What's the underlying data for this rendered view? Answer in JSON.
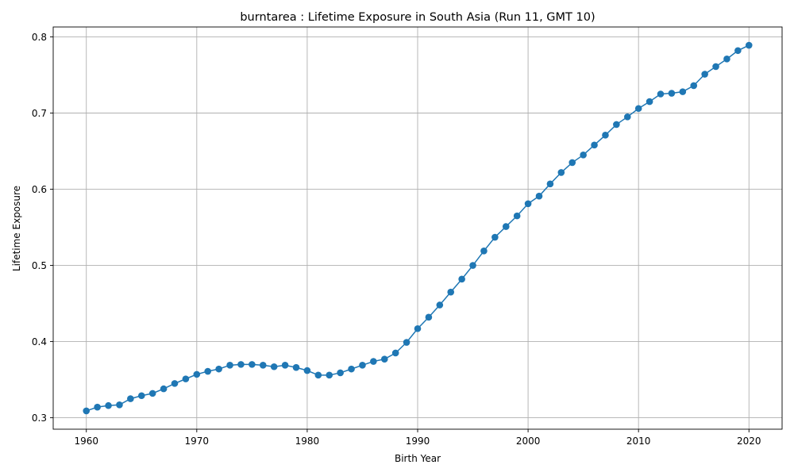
{
  "chart_data": {
    "type": "line",
    "title": "burntarea : Lifetime Exposure in South Asia (Run 11, GMT 10)",
    "xlabel": "Birth Year",
    "ylabel": "Lifetime Exposure",
    "xlim": [
      1957,
      2023
    ],
    "ylim": [
      0.285,
      0.813
    ],
    "xticks": [
      1960,
      1970,
      1980,
      1990,
      2000,
      2010,
      2020
    ],
    "yticks": [
      0.3,
      0.4,
      0.5,
      0.6,
      0.7,
      0.8
    ],
    "ytick_labels": [
      "0.3",
      "0.4",
      "0.5",
      "0.6",
      "0.7",
      "0.8"
    ],
    "grid": true,
    "legend": "none",
    "color": "#1f77b4",
    "marker": "circle",
    "series": [
      {
        "x": [
          1960,
          1961,
          1962,
          1963,
          1964,
          1965,
          1966,
          1967,
          1968,
          1969,
          1970,
          1971,
          1972,
          1973,
          1974,
          1975,
          1976,
          1977,
          1978,
          1979,
          1980,
          1981,
          1982,
          1983,
          1984,
          1985,
          1986,
          1987,
          1988,
          1989,
          1990,
          1991,
          1992,
          1993,
          1994,
          1995,
          1996,
          1997,
          1998,
          1999,
          2000,
          2001,
          2002,
          2003,
          2004,
          2005,
          2006,
          2007,
          2008,
          2009,
          2010,
          2011,
          2012,
          2013,
          2014,
          2015,
          2016,
          2017,
          2018,
          2019,
          2020
        ],
        "values": [
          0.309,
          0.314,
          0.316,
          0.317,
          0.325,
          0.329,
          0.332,
          0.338,
          0.345,
          0.351,
          0.357,
          0.361,
          0.364,
          0.369,
          0.37,
          0.37,
          0.369,
          0.367,
          0.369,
          0.366,
          0.362,
          0.356,
          0.356,
          0.359,
          0.364,
          0.369,
          0.374,
          0.377,
          0.385,
          0.399,
          0.417,
          0.432,
          0.448,
          0.465,
          0.482,
          0.5,
          0.519,
          0.537,
          0.551,
          0.565,
          0.581,
          0.591,
          0.607,
          0.622,
          0.635,
          0.645,
          0.658,
          0.671,
          0.685,
          0.695,
          0.706,
          0.715,
          0.725,
          0.726,
          0.728,
          0.736,
          0.751,
          0.761,
          0.771,
          0.782,
          0.789
        ]
      }
    ]
  }
}
